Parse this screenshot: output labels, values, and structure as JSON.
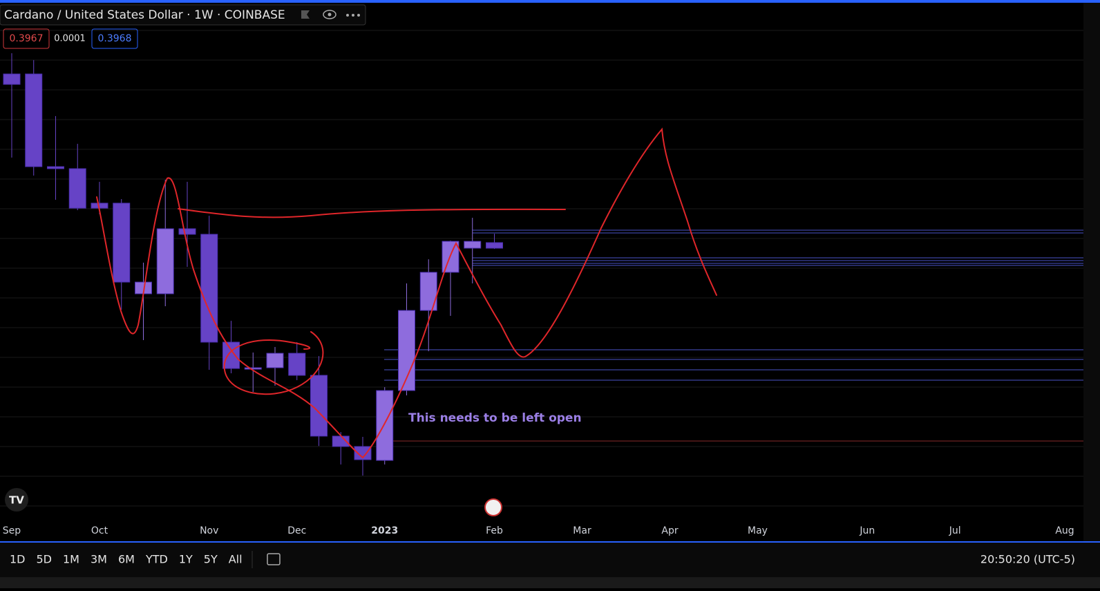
{
  "header": {
    "title": "Cardano / United States Dollar · 1W · COINBASE",
    "price_boxes": [
      "0.3967",
      "0.0001",
      "0.3968"
    ]
  },
  "chart_data": {
    "type": "candlestick",
    "annotation": "This needs to be left open",
    "xlim": [
      -0.535,
      48.85
    ],
    "xticks": [
      {
        "value": 0,
        "label": "Sep"
      },
      {
        "value": 4,
        "label": "Oct"
      },
      {
        "value": 9,
        "label": "Nov"
      },
      {
        "value": 13,
        "label": "Dec"
      },
      {
        "value": 17,
        "label": "2023"
      },
      {
        "value": 22,
        "label": "Feb"
      },
      {
        "value": 26,
        "label": "Mar"
      },
      {
        "value": 30,
        "label": "Apr"
      },
      {
        "value": 34,
        "label": "May"
      },
      {
        "value": 39,
        "label": "Jun"
      },
      {
        "value": 43,
        "label": "Jul"
      },
      {
        "value": 48,
        "label": "Aug"
      }
    ],
    "ylim": [
      0.2,
      0.55
    ],
    "up_color": "#8e6cdd",
    "down_color": "#6643c6",
    "series": [
      {
        "open": [
          0.5183,
          0.5183,
          0.4549,
          0.4535,
          0.4299,
          0.4299,
          0.3679,
          0.3679,
          0.4124,
          0.4086,
          0.3348,
          0.3163,
          0.3173,
          0.3272,
          0.3121,
          0.2705,
          0.2634,
          0.2539,
          0.3017,
          0.3565,
          0.3826,
          0.3991,
          0.4029
        ],
        "high": [
          0.5325,
          0.5278,
          0.4895,
          0.4705,
          0.4445,
          0.4327,
          0.3892,
          0.4459,
          0.4445,
          0.4213,
          0.3494,
          0.3277,
          0.3315,
          0.3348,
          0.3253,
          0.2733,
          0.27,
          0.304,
          0.375,
          0.3915,
          0.4043,
          0.4199,
          0.409
        ],
        "low": [
          0.4611,
          0.4488,
          0.4322,
          0.4251,
          0.4223,
          0.357,
          0.3362,
          0.3594,
          0.3863,
          0.3159,
          0.3135,
          0.3007,
          0.305,
          0.3088,
          0.2638,
          0.2511,
          0.2435,
          0.2511,
          0.2984,
          0.3286,
          0.3528,
          0.375,
          0.3986
        ],
        "close": [
          0.5112,
          0.4549,
          0.4535,
          0.4265,
          0.4265,
          0.3759,
          0.3759,
          0.4124,
          0.4086,
          0.3348,
          0.3168,
          0.3173,
          0.3272,
          0.3121,
          0.2705,
          0.2634,
          0.2544,
          0.3017,
          0.3565,
          0.3826,
          0.4038,
          0.4038,
          0.3991
        ]
      }
    ]
  },
  "toolbar": {
    "ranges": [
      "1D",
      "5D",
      "1M",
      "3M",
      "6M",
      "YTD",
      "1Y",
      "5Y",
      "All"
    ],
    "clock": "20:50:20 (UTC-5)"
  }
}
